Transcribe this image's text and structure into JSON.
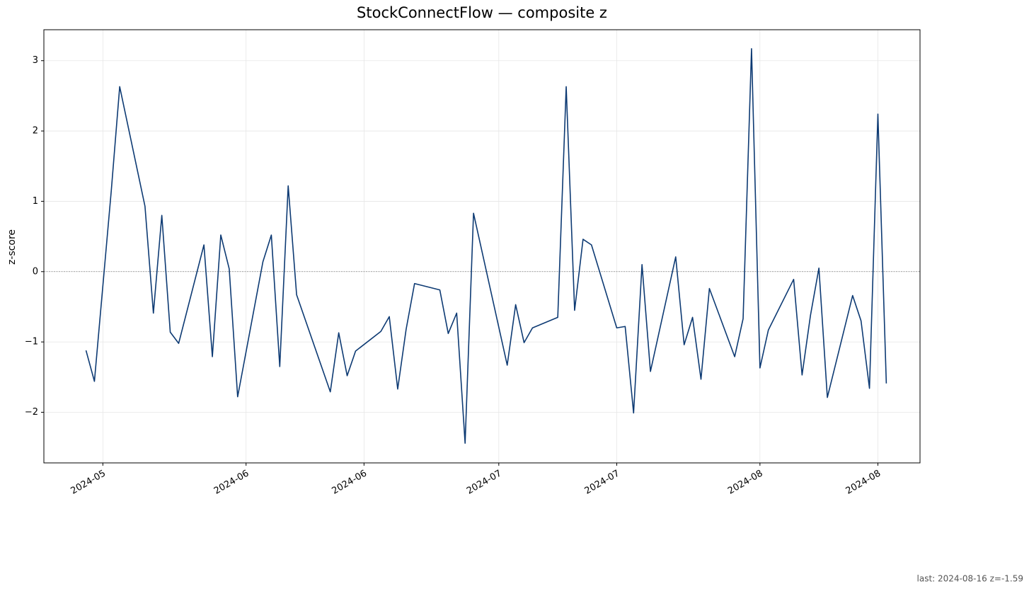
{
  "chart_data": {
    "type": "line",
    "title": "StockConnectFlow — composite z",
    "ylabel": "z-score",
    "annotation": "last: 2024-08-16 z=-1.59",
    "x": [
      "2024-05-13",
      "2024-05-14",
      "2024-05-16",
      "2024-05-17",
      "2024-05-20",
      "2024-05-21",
      "2024-05-22",
      "2024-05-23",
      "2024-05-24",
      "2024-05-27",
      "2024-05-28",
      "2024-05-29",
      "2024-05-30",
      "2024-05-31",
      "2024-06-03",
      "2024-06-04",
      "2024-06-05",
      "2024-06-06",
      "2024-06-07",
      "2024-06-11",
      "2024-06-12",
      "2024-06-13",
      "2024-06-14",
      "2024-06-17",
      "2024-06-18",
      "2024-06-19",
      "2024-06-20",
      "2024-06-21",
      "2024-06-24",
      "2024-06-25",
      "2024-06-26",
      "2024-06-27",
      "2024-06-28",
      "2024-07-02",
      "2024-07-03",
      "2024-07-04",
      "2024-07-05",
      "2024-07-08",
      "2024-07-09",
      "2024-07-10",
      "2024-07-11",
      "2024-07-12",
      "2024-07-15",
      "2024-07-16",
      "2024-07-17",
      "2024-07-18",
      "2024-07-19",
      "2024-07-22",
      "2024-07-23",
      "2024-07-24",
      "2024-07-25",
      "2024-07-26",
      "2024-07-29",
      "2024-07-30",
      "2024-07-31",
      "2024-08-01",
      "2024-08-02",
      "2024-08-05",
      "2024-08-06",
      "2024-08-07",
      "2024-08-08",
      "2024-08-09",
      "2024-08-12",
      "2024-08-13",
      "2024-08-14",
      "2024-08-15",
      "2024-08-16"
    ],
    "values": [
      -1.12,
      -1.56,
      1.15,
      2.63,
      0.93,
      -0.59,
      0.8,
      -0.86,
      -1.02,
      0.38,
      -1.21,
      0.52,
      0.04,
      -1.78,
      0.14,
      0.52,
      -1.35,
      1.22,
      -0.33,
      -1.71,
      -0.87,
      -1.48,
      -1.13,
      -0.85,
      -0.64,
      -1.67,
      -0.82,
      -0.17,
      -0.26,
      -0.88,
      -0.59,
      -2.44,
      0.83,
      -1.33,
      -0.47,
      -1.01,
      -0.8,
      -0.65,
      2.63,
      -0.55,
      0.46,
      0.38,
      -0.8,
      -0.78,
      -2.01,
      0.1,
      -1.42,
      0.21,
      -1.04,
      -0.65,
      -1.53,
      -0.24,
      -1.21,
      -0.67,
      3.17,
      -1.37,
      -0.83,
      -0.11,
      -1.47,
      -0.62,
      0.05,
      -1.79,
      -0.34,
      -0.7,
      -1.66,
      2.24,
      -1.59
    ],
    "color": "#0d3a73",
    "xlim": [
      "2024-05-08",
      "2024-08-20"
    ],
    "xticks": [
      {
        "value": "2024-05-15",
        "label": "2024-05"
      },
      {
        "value": "2024-06-01",
        "label": "2024-06"
      },
      {
        "value": "2024-06-15",
        "label": "2024-06"
      },
      {
        "value": "2024-07-01",
        "label": "2024-07"
      },
      {
        "value": "2024-07-15",
        "label": "2024-07"
      },
      {
        "value": "2024-08-01",
        "label": "2024-08"
      },
      {
        "value": "2024-08-15",
        "label": "2024-08"
      }
    ],
    "ylim": [
      -2.72,
      3.44
    ],
    "yticks": [
      {
        "value": -2,
        "label": "−2"
      },
      {
        "value": -1,
        "label": "−1"
      },
      0,
      1,
      2,
      3
    ],
    "hline": 0,
    "grid": true
  }
}
